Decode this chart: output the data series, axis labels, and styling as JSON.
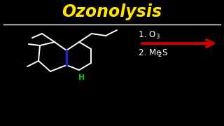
{
  "title": "Ozonolysis",
  "title_color": "#FFE500",
  "bg_color": "#000000",
  "line_color": "#FFFFFF",
  "arrow_color": "#CC0000",
  "bond_color": "#2222CC",
  "H_color": "#00CC00",
  "step1": "1. O",
  "step1_sub": "3",
  "step2": "2. Me",
  "step2_sub": "2",
  "step2_suf": "S"
}
